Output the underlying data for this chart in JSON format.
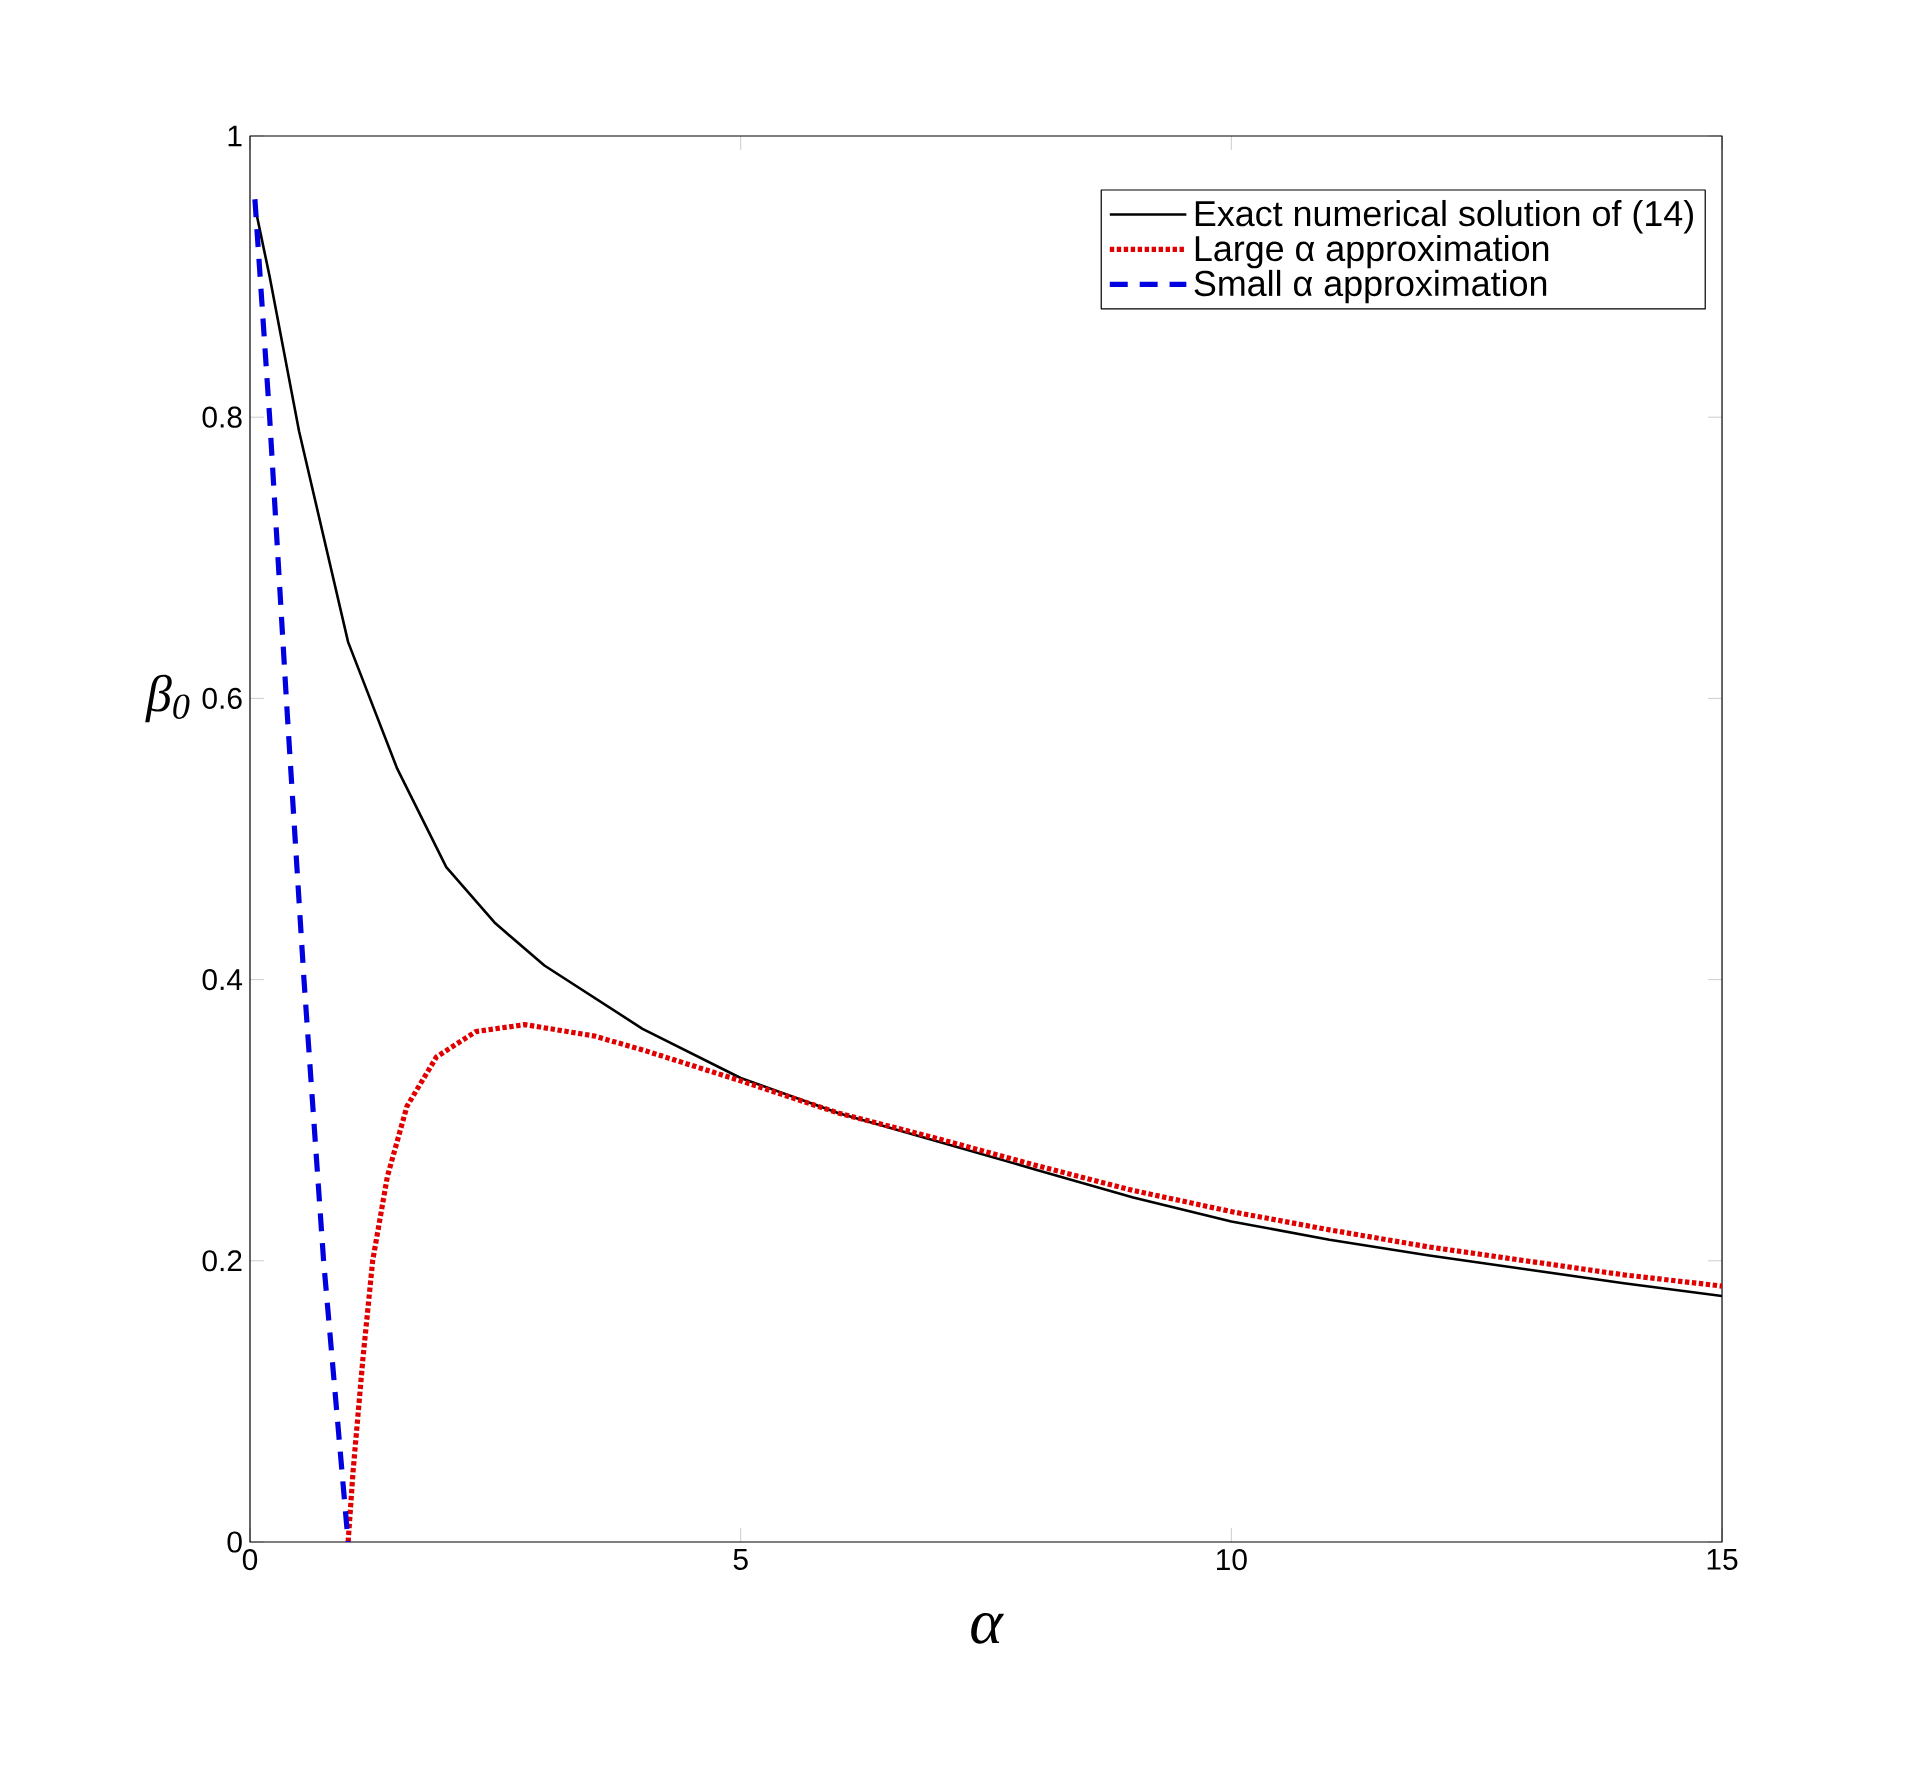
{
  "chart_data": {
    "type": "line",
    "xlabel": "α",
    "ylabel": "β$_{0}$",
    "xlim": [
      0,
      15
    ],
    "ylim": [
      0,
      1
    ],
    "xticks": [
      0,
      5,
      10,
      15
    ],
    "yticks": [
      0,
      0.2,
      0.4,
      0.6,
      0.8,
      1
    ],
    "grid": false,
    "legend": "top right",
    "marker": "none",
    "series": [
      {
        "name": "Exact numerical solution of (14)",
        "color": "#000000",
        "line_style": "solid",
        "x": [
          0.05,
          0.2,
          0.5,
          1,
          1.5,
          2,
          2.5,
          3,
          4,
          5,
          6,
          7,
          8,
          9,
          10,
          11,
          12,
          13,
          14,
          15
        ],
        "values": [
          0.95,
          0.9,
          0.79,
          0.64,
          0.55,
          0.48,
          0.44,
          0.41,
          0.365,
          0.33,
          0.305,
          0.285,
          0.265,
          0.245,
          0.228,
          0.215,
          0.204,
          0.194,
          0.184,
          0.175
        ]
      },
      {
        "name": "Large α approximation",
        "color": "#e00000",
        "line_style": "dotted",
        "x": [
          1,
          1.05,
          1.15,
          1.25,
          1.4,
          1.6,
          1.9,
          2.3,
          2.8,
          3.5,
          4,
          5,
          6,
          7,
          8,
          9,
          10,
          11,
          12,
          13,
          14,
          15
        ],
        "values": [
          0,
          0.05,
          0.13,
          0.2,
          0.26,
          0.31,
          0.345,
          0.363,
          0.368,
          0.36,
          0.35,
          0.328,
          0.305,
          0.287,
          0.268,
          0.25,
          0.235,
          0.222,
          0.21,
          0.2,
          0.19,
          0.182
        ]
      },
      {
        "name": "Small α approximation",
        "color": "#0000e0",
        "line_style": "dashed",
        "x": [
          0.05,
          0.2,
          0.37,
          0.55,
          0.75,
          1
        ],
        "values": [
          0.955,
          0.8,
          0.6,
          0.4,
          0.2,
          0
        ]
      }
    ]
  }
}
